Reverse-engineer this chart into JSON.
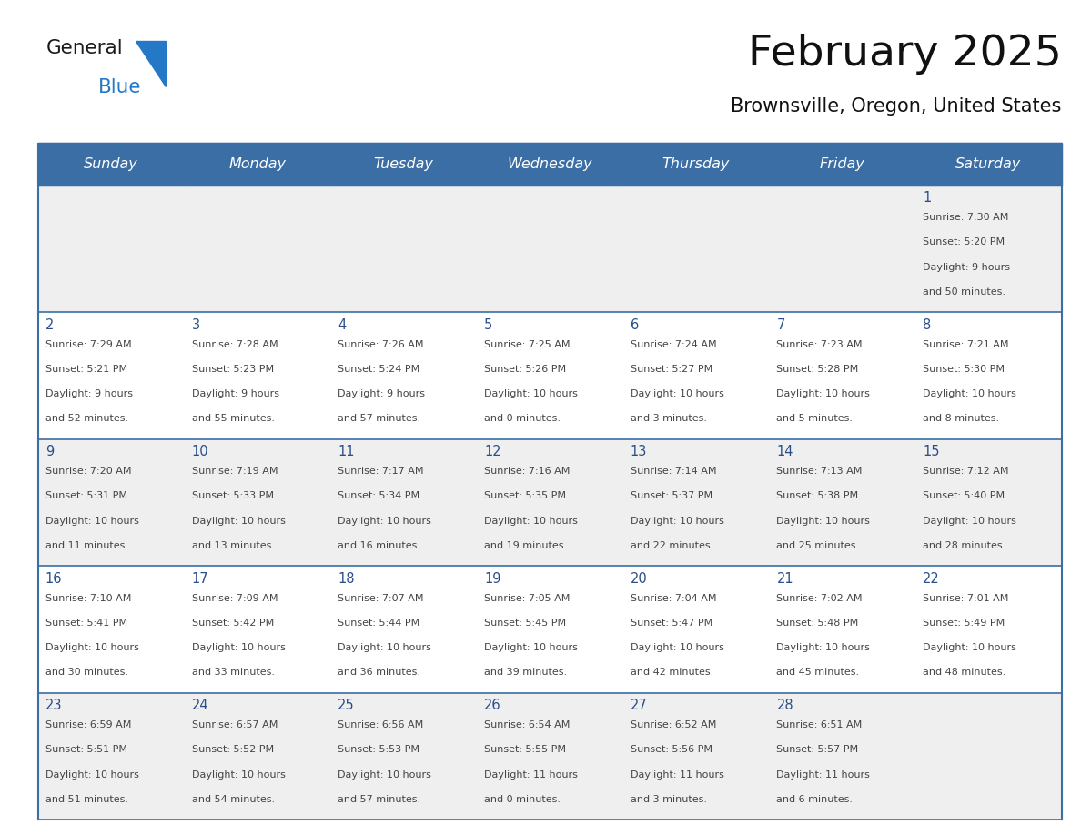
{
  "title": "February 2025",
  "subtitle": "Brownsville, Oregon, United States",
  "header_bg": "#3a6ea5",
  "header_text": "#ffffff",
  "cell_bg_odd": "#efefef",
  "cell_bg_even": "#ffffff",
  "day_number_color": "#2b4e8a",
  "info_text_color": "#444444",
  "border_color": "#3a6ea5",
  "logo_dark_color": "#1a1a1a",
  "logo_blue_color": "#2478c5",
  "weekdays": [
    "Sunday",
    "Monday",
    "Tuesday",
    "Wednesday",
    "Thursday",
    "Friday",
    "Saturday"
  ],
  "calendar": [
    [
      {
        "day": 0,
        "sunrise": "",
        "sunset": "",
        "daylight": ""
      },
      {
        "day": 0,
        "sunrise": "",
        "sunset": "",
        "daylight": ""
      },
      {
        "day": 0,
        "sunrise": "",
        "sunset": "",
        "daylight": ""
      },
      {
        "day": 0,
        "sunrise": "",
        "sunset": "",
        "daylight": ""
      },
      {
        "day": 0,
        "sunrise": "",
        "sunset": "",
        "daylight": ""
      },
      {
        "day": 0,
        "sunrise": "",
        "sunset": "",
        "daylight": ""
      },
      {
        "day": 1,
        "sunrise": "Sunrise: 7:30 AM",
        "sunset": "Sunset: 5:20 PM",
        "daylight": "Daylight: 9 hours\nand 50 minutes."
      }
    ],
    [
      {
        "day": 2,
        "sunrise": "Sunrise: 7:29 AM",
        "sunset": "Sunset: 5:21 PM",
        "daylight": "Daylight: 9 hours\nand 52 minutes."
      },
      {
        "day": 3,
        "sunrise": "Sunrise: 7:28 AM",
        "sunset": "Sunset: 5:23 PM",
        "daylight": "Daylight: 9 hours\nand 55 minutes."
      },
      {
        "day": 4,
        "sunrise": "Sunrise: 7:26 AM",
        "sunset": "Sunset: 5:24 PM",
        "daylight": "Daylight: 9 hours\nand 57 minutes."
      },
      {
        "day": 5,
        "sunrise": "Sunrise: 7:25 AM",
        "sunset": "Sunset: 5:26 PM",
        "daylight": "Daylight: 10 hours\nand 0 minutes."
      },
      {
        "day": 6,
        "sunrise": "Sunrise: 7:24 AM",
        "sunset": "Sunset: 5:27 PM",
        "daylight": "Daylight: 10 hours\nand 3 minutes."
      },
      {
        "day": 7,
        "sunrise": "Sunrise: 7:23 AM",
        "sunset": "Sunset: 5:28 PM",
        "daylight": "Daylight: 10 hours\nand 5 minutes."
      },
      {
        "day": 8,
        "sunrise": "Sunrise: 7:21 AM",
        "sunset": "Sunset: 5:30 PM",
        "daylight": "Daylight: 10 hours\nand 8 minutes."
      }
    ],
    [
      {
        "day": 9,
        "sunrise": "Sunrise: 7:20 AM",
        "sunset": "Sunset: 5:31 PM",
        "daylight": "Daylight: 10 hours\nand 11 minutes."
      },
      {
        "day": 10,
        "sunrise": "Sunrise: 7:19 AM",
        "sunset": "Sunset: 5:33 PM",
        "daylight": "Daylight: 10 hours\nand 13 minutes."
      },
      {
        "day": 11,
        "sunrise": "Sunrise: 7:17 AM",
        "sunset": "Sunset: 5:34 PM",
        "daylight": "Daylight: 10 hours\nand 16 minutes."
      },
      {
        "day": 12,
        "sunrise": "Sunrise: 7:16 AM",
        "sunset": "Sunset: 5:35 PM",
        "daylight": "Daylight: 10 hours\nand 19 minutes."
      },
      {
        "day": 13,
        "sunrise": "Sunrise: 7:14 AM",
        "sunset": "Sunset: 5:37 PM",
        "daylight": "Daylight: 10 hours\nand 22 minutes."
      },
      {
        "day": 14,
        "sunrise": "Sunrise: 7:13 AM",
        "sunset": "Sunset: 5:38 PM",
        "daylight": "Daylight: 10 hours\nand 25 minutes."
      },
      {
        "day": 15,
        "sunrise": "Sunrise: 7:12 AM",
        "sunset": "Sunset: 5:40 PM",
        "daylight": "Daylight: 10 hours\nand 28 minutes."
      }
    ],
    [
      {
        "day": 16,
        "sunrise": "Sunrise: 7:10 AM",
        "sunset": "Sunset: 5:41 PM",
        "daylight": "Daylight: 10 hours\nand 30 minutes."
      },
      {
        "day": 17,
        "sunrise": "Sunrise: 7:09 AM",
        "sunset": "Sunset: 5:42 PM",
        "daylight": "Daylight: 10 hours\nand 33 minutes."
      },
      {
        "day": 18,
        "sunrise": "Sunrise: 7:07 AM",
        "sunset": "Sunset: 5:44 PM",
        "daylight": "Daylight: 10 hours\nand 36 minutes."
      },
      {
        "day": 19,
        "sunrise": "Sunrise: 7:05 AM",
        "sunset": "Sunset: 5:45 PM",
        "daylight": "Daylight: 10 hours\nand 39 minutes."
      },
      {
        "day": 20,
        "sunrise": "Sunrise: 7:04 AM",
        "sunset": "Sunset: 5:47 PM",
        "daylight": "Daylight: 10 hours\nand 42 minutes."
      },
      {
        "day": 21,
        "sunrise": "Sunrise: 7:02 AM",
        "sunset": "Sunset: 5:48 PM",
        "daylight": "Daylight: 10 hours\nand 45 minutes."
      },
      {
        "day": 22,
        "sunrise": "Sunrise: 7:01 AM",
        "sunset": "Sunset: 5:49 PM",
        "daylight": "Daylight: 10 hours\nand 48 minutes."
      }
    ],
    [
      {
        "day": 23,
        "sunrise": "Sunrise: 6:59 AM",
        "sunset": "Sunset: 5:51 PM",
        "daylight": "Daylight: 10 hours\nand 51 minutes."
      },
      {
        "day": 24,
        "sunrise": "Sunrise: 6:57 AM",
        "sunset": "Sunset: 5:52 PM",
        "daylight": "Daylight: 10 hours\nand 54 minutes."
      },
      {
        "day": 25,
        "sunrise": "Sunrise: 6:56 AM",
        "sunset": "Sunset: 5:53 PM",
        "daylight": "Daylight: 10 hours\nand 57 minutes."
      },
      {
        "day": 26,
        "sunrise": "Sunrise: 6:54 AM",
        "sunset": "Sunset: 5:55 PM",
        "daylight": "Daylight: 11 hours\nand 0 minutes."
      },
      {
        "day": 27,
        "sunrise": "Sunrise: 6:52 AM",
        "sunset": "Sunset: 5:56 PM",
        "daylight": "Daylight: 11 hours\nand 3 minutes."
      },
      {
        "day": 28,
        "sunrise": "Sunrise: 6:51 AM",
        "sunset": "Sunset: 5:57 PM",
        "daylight": "Daylight: 11 hours\nand 6 minutes."
      },
      {
        "day": 0,
        "sunrise": "",
        "sunset": "",
        "daylight": ""
      }
    ]
  ],
  "fig_width": 11.88,
  "fig_height": 9.18,
  "dpi": 100
}
